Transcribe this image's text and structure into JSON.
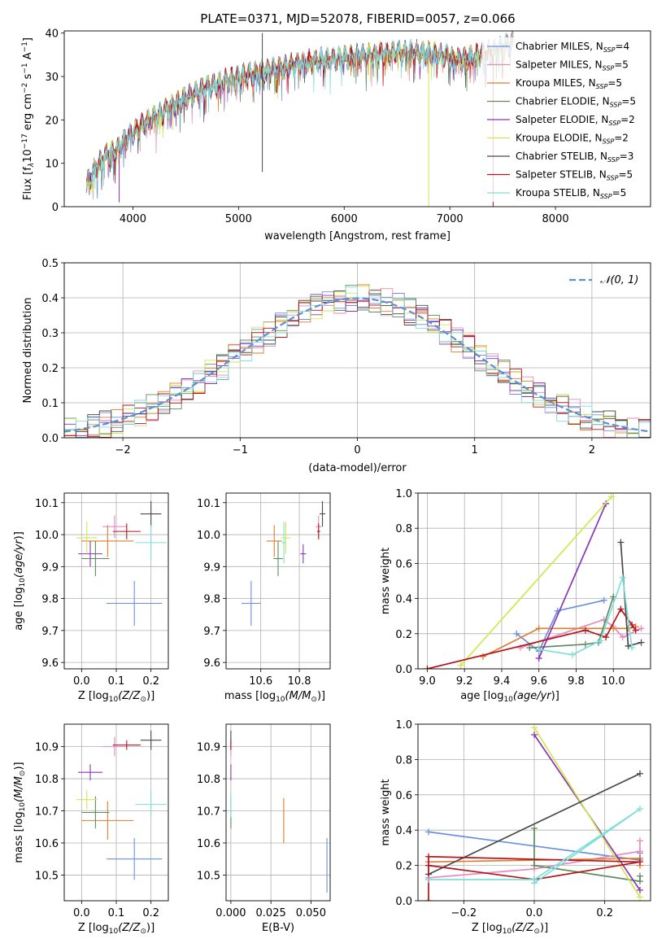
{
  "figure": {
    "title": "PLATE=0371, MJD=52078, FIBERID=0057, z=0.066"
  },
  "models": [
    {
      "name": "Chabrier MILES, N$_{SSP}$=4",
      "label_main": "Chabrier MILES, N",
      "label_sub": "SSP",
      "label_tail": "=4",
      "color": "#6a8fe0"
    },
    {
      "name": "Salpeter MILES, N$_{SSP}$=5",
      "label_main": "Salpeter MILES, N",
      "label_sub": "SSP",
      "label_tail": "=5",
      "color": "#e58ac0"
    },
    {
      "name": "Kroupa MILES, N$_{SSP}$=5",
      "label_main": "Kroupa MILES, N",
      "label_sub": "SSP",
      "label_tail": "=5",
      "color": "#e07c2c"
    },
    {
      "name": "Chabrier ELODIE, N$_{SSP}$=5",
      "label_main": "Chabrier ELODIE, N",
      "label_sub": "SSP",
      "label_tail": "=5",
      "color": "#5e8c5e"
    },
    {
      "name": "Salpeter ELODIE, N$_{SSP}$=2",
      "label_main": "Salpeter ELODIE, N",
      "label_sub": "SSP",
      "label_tail": "=2",
      "color": "#8a35b8"
    },
    {
      "name": "Kroupa ELODIE, N$_{SSP}$=2",
      "label_main": "Kroupa ELODIE, N",
      "label_sub": "SSP",
      "label_tail": "=2",
      "color": "#cfe84e"
    },
    {
      "name": "Chabrier STELIB, N$_{SSP}$=3",
      "label_main": "Chabrier STELIB, N",
      "label_sub": "SSP",
      "label_tail": "=3",
      "color": "#4a4a4a"
    },
    {
      "name": "Salpeter STELIB, N$_{SSP}$=5",
      "label_main": "Salpeter STELIB, N",
      "label_sub": "SSP",
      "label_tail": "=5",
      "color": "#b3151c"
    },
    {
      "name": "Kroupa STELIB, N$_{SSP}$=5",
      "label_main": "Kroupa STELIB, N",
      "label_sub": "SSP",
      "label_tail": "=5",
      "color": "#7fdedc"
    }
  ],
  "chart_data": [
    {
      "id": "spectrum",
      "type": "line",
      "xlabel": "wavelength [Angstrom, rest frame]",
      "ylabel": "Flux [f$_\\lambda$10$^{-17}$ erg cm$^{-2}$ s$^{-1}$ A$^{-1}$]",
      "ylabel_parts": [
        "Flux [f",
        "λ",
        "10",
        "−17",
        " erg cm",
        "−2",
        " s",
        "−1",
        " A",
        "−1",
        "]"
      ],
      "xlim": [
        3350,
        8900
      ],
      "ylim": [
        0,
        40.5
      ],
      "xticks": [
        4000,
        5000,
        6000,
        7000,
        8000
      ],
      "yticks": [
        0,
        10,
        20,
        30,
        40
      ],
      "grid": false,
      "legend": "upper right",
      "continuum": {
        "x": [
          3560,
          3650,
          3750,
          3850,
          3950,
          4050,
          4150,
          4250,
          4350,
          4500,
          4700,
          4900,
          5100,
          5300,
          5500,
          5700,
          5900,
          6100,
          6300,
          6500,
          6700,
          6900,
          7100,
          7300,
          7500,
          7600
        ],
        "y": [
          5,
          9,
          12,
          13,
          16,
          18,
          20,
          21,
          23,
          25,
          27.5,
          29,
          30.5,
          31.5,
          32.5,
          33.5,
          34,
          34.5,
          35,
          35.5,
          35.5,
          35,
          34,
          35,
          36.5,
          38
        ]
      },
      "features": [
        {
          "series": 6,
          "x": 5225,
          "y_top": 40,
          "y_bottom": 8
        },
        {
          "series": 5,
          "x": 6800,
          "y_top": 34,
          "y_bottom": 0
        },
        {
          "series": 7,
          "x": 7410,
          "y_top": 34,
          "y_bottom": 0
        },
        {
          "series": 4,
          "x": 3870,
          "y_top": 12,
          "y_bottom": 1
        }
      ]
    },
    {
      "id": "residual_histogram",
      "type": "line",
      "xlabel": "(data-model)/error",
      "ylabel": "Normed distribution",
      "xlim": [
        -2.5,
        2.5
      ],
      "ylim": [
        0,
        0.5
      ],
      "xticks": [
        -2,
        -1,
        0,
        1,
        2
      ],
      "yticks": [
        0,
        0.1,
        0.2,
        0.3,
        0.4,
        0.5
      ],
      "grid": true,
      "legend": "upper right",
      "reference_curve": {
        "name": "$\\mathcal{N}(0,1)$",
        "label": "𝒩(0, 1)",
        "color": "#5b8fd6",
        "mean": 0,
        "sigma": 1
      },
      "bin_width": 0.1
    },
    {
      "id": "age_vs_Z",
      "type": "scatter",
      "xlabel": "Z [log$_{10}$($Z/Z_\\odot$)]",
      "xlabel_main": "Z [log",
      "xlabel_sub": "10",
      "xlabel_tail": "(Z/Z",
      "ylabel": "age  [log$_{10}$($age/yr$)]",
      "xlim": [
        -0.05,
        0.25
      ],
      "ylim": [
        9.58,
        10.13
      ],
      "xticks": [
        0.0,
        0.1,
        0.2
      ],
      "yticks": [
        9.6,
        9.7,
        9.8,
        9.9,
        10.0,
        10.1
      ],
      "grid": true,
      "points": [
        {
          "series": 0,
          "x": 0.152,
          "y": 9.785,
          "xerr": 0.08,
          "yerr": 0.07
        },
        {
          "series": 1,
          "x": 0.095,
          "y": 10.025,
          "xerr": 0.035,
          "yerr": 0.035
        },
        {
          "series": 2,
          "x": 0.075,
          "y": 9.98,
          "xerr": 0.075,
          "yerr": 0.05
        },
        {
          "series": 3,
          "x": 0.04,
          "y": 9.925,
          "xerr": 0.04,
          "yerr": 0.055
        },
        {
          "series": 4,
          "x": 0.025,
          "y": 9.94,
          "xerr": 0.035,
          "yerr": 0.04
        },
        {
          "series": 5,
          "x": 0.015,
          "y": 9.99,
          "xerr": 0.03,
          "yerr": 0.05
        },
        {
          "series": 6,
          "x": 0.2,
          "y": 10.065,
          "xerr": 0.03,
          "yerr": 0.04
        },
        {
          "series": 7,
          "x": 0.13,
          "y": 10.01,
          "xerr": 0.04,
          "yerr": 0.025
        },
        {
          "series": 8,
          "x": 0.2,
          "y": 9.975,
          "xerr": 0.045,
          "yerr": 0.055
        }
      ]
    },
    {
      "id": "age_vs_mass",
      "type": "scatter",
      "xlabel": "mass [log$_{10}$($M/M_\\odot$)]",
      "xlabel_main": "mass [log",
      "xlabel_sub": "10",
      "xlabel_tail": "(M/M",
      "ylabel": "",
      "xlim": [
        10.42,
        10.96
      ],
      "ylim": [
        9.58,
        10.13
      ],
      "xticks": [
        10.6,
        10.8
      ],
      "yticks": [
        9.6,
        9.7,
        9.8,
        9.9,
        10.0,
        10.1
      ],
      "grid": true,
      "points": [
        {
          "series": 0,
          "x": 10.55,
          "y": 9.785,
          "xerr": 0.05,
          "yerr": 0.07
        },
        {
          "series": 1,
          "x": 10.9,
          "y": 10.025,
          "xerr": 0.015,
          "yerr": 0.035
        },
        {
          "series": 2,
          "x": 10.67,
          "y": 9.98,
          "xerr": 0.04,
          "yerr": 0.05
        },
        {
          "series": 3,
          "x": 10.69,
          "y": 9.925,
          "xerr": 0.025,
          "yerr": 0.055
        },
        {
          "series": 4,
          "x": 10.82,
          "y": 9.94,
          "xerr": 0.015,
          "yerr": 0.03
        },
        {
          "series": 5,
          "x": 10.73,
          "y": 9.99,
          "xerr": 0.025,
          "yerr": 0.05
        },
        {
          "series": 6,
          "x": 10.92,
          "y": 10.065,
          "xerr": 0.015,
          "yerr": 0.04
        },
        {
          "series": 7,
          "x": 10.9,
          "y": 10.01,
          "xerr": 0.008,
          "yerr": 0.025
        },
        {
          "series": 8,
          "x": 10.72,
          "y": 9.975,
          "xerr": 0.01,
          "yerr": 0.065
        }
      ]
    },
    {
      "id": "mass_weight_vs_age",
      "type": "line",
      "xlabel": "age  [log$_{10}$($age/yr$)]",
      "xlabel_main": "age  [log",
      "xlabel_sub": "10",
      "xlabel_tail": "(age/yr)]",
      "ylabel": "mass weight",
      "xlim": [
        8.95,
        10.2
      ],
      "ylim": [
        0,
        1.0
      ],
      "xticks": [
        9.0,
        9.2,
        9.4,
        9.6,
        9.8,
        10.0
      ],
      "yticks": [
        0.0,
        0.2,
        0.4,
        0.6,
        0.8,
        1.0
      ],
      "grid": true,
      "series": [
        {
          "series": 0,
          "x": [
            9.48,
            9.6,
            9.7,
            9.95
          ],
          "y": [
            0.2,
            0.1,
            0.33,
            0.39
          ]
        },
        {
          "series": 1,
          "x": [
            9.5,
            9.95,
            10.0,
            10.05,
            10.15
          ],
          "y": [
            0.12,
            0.28,
            0.24,
            0.18,
            0.23
          ]
        },
        {
          "series": 2,
          "x": [
            9.3,
            9.6,
            10.0,
            10.08,
            10.12
          ],
          "y": [
            0.07,
            0.23,
            0.23,
            0.23,
            0.24
          ]
        },
        {
          "series": 3,
          "x": [
            9.55,
            9.85,
            9.92,
            10.0
          ],
          "y": [
            0.12,
            0.14,
            0.15,
            0.41
          ]
        },
        {
          "series": 4,
          "x": [
            9.6,
            9.96
          ],
          "y": [
            0.06,
            0.94
          ]
        },
        {
          "series": 5,
          "x": [
            9.18,
            9.99
          ],
          "y": [
            0.02,
            0.98
          ]
        },
        {
          "series": 6,
          "x": [
            10.04,
            10.08,
            10.15
          ],
          "y": [
            0.72,
            0.13,
            0.15
          ]
        },
        {
          "series": 7,
          "x": [
            9.0,
            9.85,
            9.96,
            10.04,
            10.1,
            10.12
          ],
          "y": [
            0.0,
            0.22,
            0.18,
            0.34,
            0.25,
            0.22
          ]
        },
        {
          "series": 8,
          "x": [
            9.6,
            9.78,
            9.93,
            10.05,
            10.1
          ],
          "y": [
            0.11,
            0.08,
            0.16,
            0.52,
            0.12
          ]
        }
      ]
    },
    {
      "id": "mass_vs_Z",
      "type": "scatter",
      "xlabel": "Z [log$_{10}$($Z/Z_\\odot$)]",
      "xlabel_main": "Z [log",
      "xlabel_sub": "10",
      "xlabel_tail": "(Z/Z",
      "ylabel": "mass [log$_{10}$($M/M_\\odot$)]",
      "ylabel_main": "mass [log",
      "ylabel_sub": "10",
      "ylabel_tail": "(M/M",
      "xlim": [
        -0.05,
        0.25
      ],
      "ylim": [
        10.42,
        10.97
      ],
      "xticks": [
        0.0,
        0.1,
        0.2
      ],
      "yticks": [
        10.5,
        10.6,
        10.7,
        10.8,
        10.9
      ],
      "grid": true,
      "points": [
        {
          "series": 0,
          "x": 0.152,
          "y": 10.55,
          "xerr": 0.08,
          "yerr": 0.065
        },
        {
          "series": 1,
          "x": 0.095,
          "y": 10.9,
          "xerr": 0.035,
          "yerr": 0.03
        },
        {
          "series": 2,
          "x": 0.075,
          "y": 10.67,
          "xerr": 0.075,
          "yerr": 0.06
        },
        {
          "series": 3,
          "x": 0.04,
          "y": 10.695,
          "xerr": 0.04,
          "yerr": 0.05
        },
        {
          "series": 4,
          "x": 0.025,
          "y": 10.82,
          "xerr": 0.035,
          "yerr": 0.025
        },
        {
          "series": 5,
          "x": 0.015,
          "y": 10.735,
          "xerr": 0.03,
          "yerr": 0.03
        },
        {
          "series": 6,
          "x": 0.2,
          "y": 10.92,
          "xerr": 0.03,
          "yerr": 0.03
        },
        {
          "series": 7,
          "x": 0.13,
          "y": 10.905,
          "xerr": 0.04,
          "yerr": 0.015
        },
        {
          "series": 8,
          "x": 0.2,
          "y": 10.72,
          "xerr": 0.045,
          "yerr": 0.04
        }
      ]
    },
    {
      "id": "mass_vs_ebv",
      "type": "scatter",
      "xlabel": "E(B-V)",
      "ylabel": "",
      "xlim": [
        -0.003,
        0.062
      ],
      "ylim": [
        10.42,
        10.97
      ],
      "xticks": [
        0.0,
        0.025,
        0.05
      ],
      "xtick_labels": [
        "0.000",
        "0.025",
        "0.050"
      ],
      "yticks": [
        10.5,
        10.6,
        10.7,
        10.8,
        10.9
      ],
      "grid": true,
      "points": [
        {
          "series": 0,
          "x": 0.06,
          "y": 10.53,
          "xerr": 0,
          "yerr": 0.085
        },
        {
          "series": 1,
          "x": 0.0,
          "y": 10.9,
          "xerr": 0,
          "yerr": 0.03
        },
        {
          "series": 2,
          "x": 0.033,
          "y": 10.67,
          "xerr": 0,
          "yerr": 0.07
        },
        {
          "series": 3,
          "x": 0.0,
          "y": 10.695,
          "xerr": 0,
          "yerr": 0.05
        },
        {
          "series": 4,
          "x": 0.0,
          "y": 10.82,
          "xerr": 0,
          "yerr": 0.025
        },
        {
          "series": 5,
          "x": 0.0,
          "y": 10.735,
          "xerr": 0,
          "yerr": 0.03
        },
        {
          "series": 6,
          "x": 0.0,
          "y": 10.92,
          "xerr": 0,
          "yerr": 0.03
        },
        {
          "series": 7,
          "x": 0.0,
          "y": 10.905,
          "xerr": 0,
          "yerr": 0.015
        },
        {
          "series": 8,
          "x": 0.0,
          "y": 10.72,
          "xerr": 0,
          "yerr": 0.04
        }
      ]
    },
    {
      "id": "mass_weight_vs_Z",
      "type": "line",
      "xlabel": "Z [log$_{10}$($Z/Z_\\odot$)]",
      "xlabel_main": "Z [log",
      "xlabel_sub": "10",
      "xlabel_tail": "(Z/Z",
      "ylabel": "mass weight",
      "xlim": [
        -0.33,
        0.33
      ],
      "ylim": [
        0,
        1.0
      ],
      "xticks": [
        -0.2,
        0.0,
        0.2
      ],
      "yticks": [
        0.0,
        0.2,
        0.4,
        0.6,
        0.8,
        1.0
      ],
      "grid": true,
      "series": [
        {
          "series": 0,
          "x": [
            -0.3,
            0.3,
            0.3
          ],
          "y": [
            0.39,
            0.23,
            0.27
          ]
        },
        {
          "series": 1,
          "x": [
            -0.3,
            0.0,
            0.3,
            0.3
          ],
          "y": [
            0.13,
            0.18,
            0.28,
            0.34
          ]
        },
        {
          "series": 2,
          "x": [
            -0.3,
            0.0,
            0.3,
            0.3
          ],
          "y": [
            0.22,
            0.23,
            0.24,
            0.2
          ]
        },
        {
          "series": 3,
          "x": [
            0.0,
            0.0,
            0.3,
            0.3
          ],
          "y": [
            0.41,
            0.2,
            0.11,
            0.14
          ]
        },
        {
          "series": 4,
          "x": [
            0.0,
            0.3
          ],
          "y": [
            0.94,
            0.06
          ]
        },
        {
          "series": 5,
          "x": [
            0.0,
            0.3
          ],
          "y": [
            0.98,
            0.02
          ]
        },
        {
          "series": 6,
          "x": [
            -0.3,
            0.3
          ],
          "y": [
            0.15,
            0.72
          ]
        },
        {
          "series": 7,
          "x": [
            -0.3,
            -0.3,
            0.3,
            0.0,
            -0.3
          ],
          "y": [
            0.0,
            0.25,
            0.22,
            0.12,
            0.2
          ]
        },
        {
          "series": 8,
          "x": [
            -0.3,
            0.0,
            0.3,
            0.0
          ],
          "y": [
            0.12,
            0.12,
            0.52,
            0.1
          ]
        }
      ]
    }
  ]
}
